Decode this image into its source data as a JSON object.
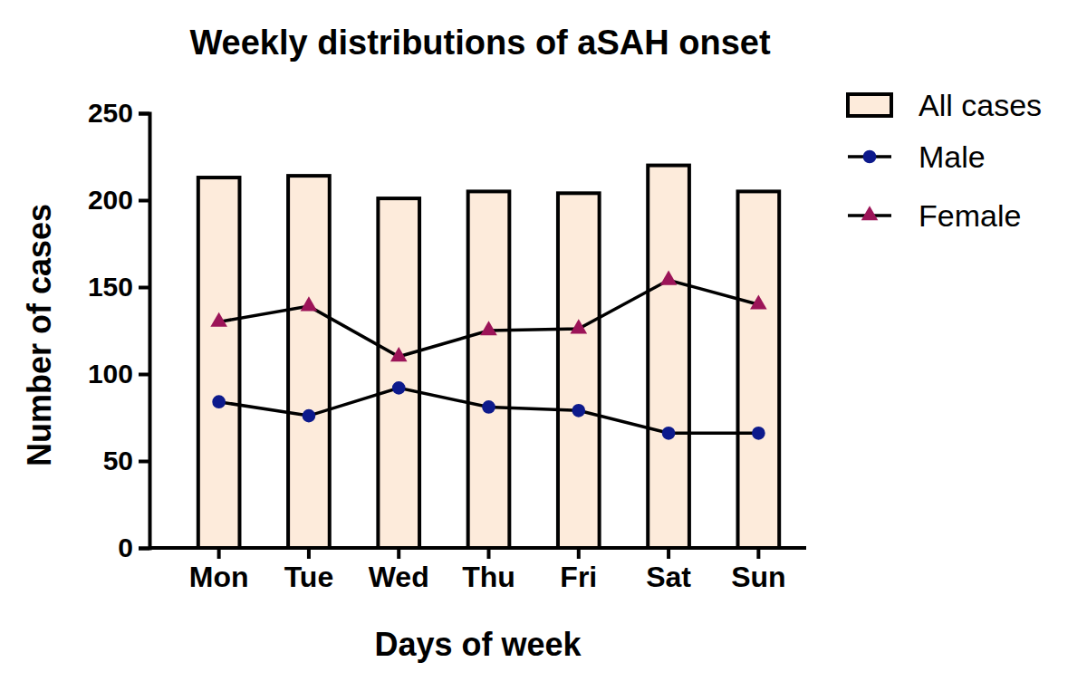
{
  "chart_data": {
    "type": "bar",
    "title": "Weekly distributions of aSAH onset",
    "x_label": "Days of week",
    "y_label": "Number of cases",
    "categories": [
      "Mon",
      "Tue",
      "Wed",
      "Thu",
      "Fri",
      "Sat",
      "Sun"
    ],
    "series": [
      {
        "name": "All cases",
        "type": "bar",
        "color": "#fdebdb",
        "values": [
          213,
          214,
          201,
          205,
          204,
          220,
          205
        ]
      },
      {
        "name": "Male",
        "type": "line",
        "color": "#0d1a8c",
        "marker": "circle",
        "line_style": "solid",
        "values": [
          84,
          76,
          92,
          81,
          79,
          66,
          66
        ]
      },
      {
        "name": "Female",
        "type": "line",
        "color": "#9c1458",
        "marker": "triangle",
        "line_style": "solid",
        "values": [
          130,
          139,
          110,
          125,
          126,
          154,
          140
        ]
      }
    ],
    "ylim": [
      0,
      250
    ],
    "yticks": [
      0,
      50,
      100,
      150,
      200,
      250
    ],
    "grid": false,
    "legend": "right"
  }
}
